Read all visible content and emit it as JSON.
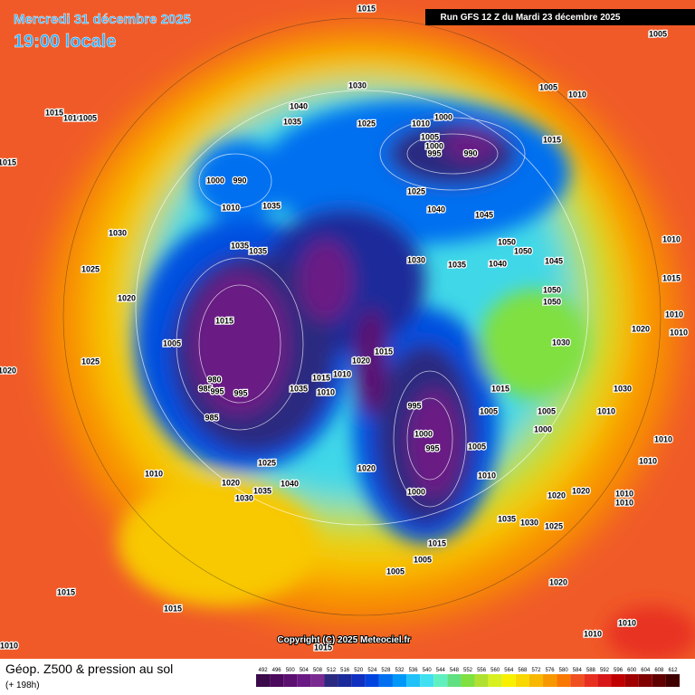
{
  "header": {
    "date": "Mercredi 31 décembre 2025",
    "time": "19:00 locale",
    "run": "Run GFS 12 Z du Mardi 23 décembre 2025"
  },
  "copyright": "Copyright (C) 2025 Meteociel.fr",
  "footer": {
    "title": "Géop. Z500 & pression au sol",
    "lead": "(+ 198h)"
  },
  "legend": {
    "values": [
      492,
      496,
      500,
      504,
      508,
      512,
      516,
      520,
      524,
      528,
      532,
      536,
      540,
      544,
      548,
      552,
      556,
      560,
      564,
      568,
      572,
      576,
      580,
      584,
      588,
      592,
      596,
      600,
      604,
      608,
      612
    ],
    "colors": [
      "#3a0a4a",
      "#4b0a5c",
      "#5c1070",
      "#6a1a84",
      "#7a2a90",
      "#2c2a80",
      "#1a2a9a",
      "#1030c0",
      "#0044e0",
      "#0070f0",
      "#0098f8",
      "#20c0f8",
      "#40e0f0",
      "#60f0c0",
      "#60e080",
      "#80e040",
      "#b0e030",
      "#d8f020",
      "#f8f000",
      "#f8d800",
      "#f8b800",
      "#f89800",
      "#f87800",
      "#f05020",
      "#e83020",
      "#d81818",
      "#c00000",
      "#a00000",
      "#800000",
      "#600000",
      "#400000"
    ]
  },
  "isobar_labels": [
    "1015",
    "1005",
    "1030",
    "1005",
    "1010",
    "1040",
    "1035",
    "1025",
    "1010",
    "1000",
    "1015",
    "1010",
    "1005",
    "1015",
    "1005",
    "1000",
    "995",
    "990",
    "1015",
    "1000",
    "990",
    "1010",
    "1035",
    "1025",
    "1040",
    "1045",
    "1030",
    "1035",
    "1035",
    "1050",
    "1010",
    "1030",
    "1035",
    "1040",
    "1050",
    "1045",
    "1025",
    "1020",
    "1050",
    "1050",
    "1015",
    "1015",
    "1010",
    "1005",
    "1020",
    "1030",
    "1010",
    "1015",
    "1020",
    "1020",
    "1025",
    "1010",
    "1015",
    "980",
    "985",
    "995",
    "995",
    "1035",
    "1015",
    "1030",
    "1010",
    "995",
    "1005",
    "1005",
    "1010",
    "985",
    "1000",
    "1000",
    "995",
    "1005",
    "1010",
    "1025",
    "1020",
    "1010",
    "1010",
    "1010",
    "1020",
    "1040",
    "1035",
    "1000",
    "1020",
    "1020",
    "1030",
    "1010",
    "1010",
    "1035",
    "1030",
    "1025",
    "1015",
    "1005",
    "1005",
    "1020",
    "1015",
    "1015",
    "1010",
    "1010",
    "1015",
    "1010"
  ]
}
